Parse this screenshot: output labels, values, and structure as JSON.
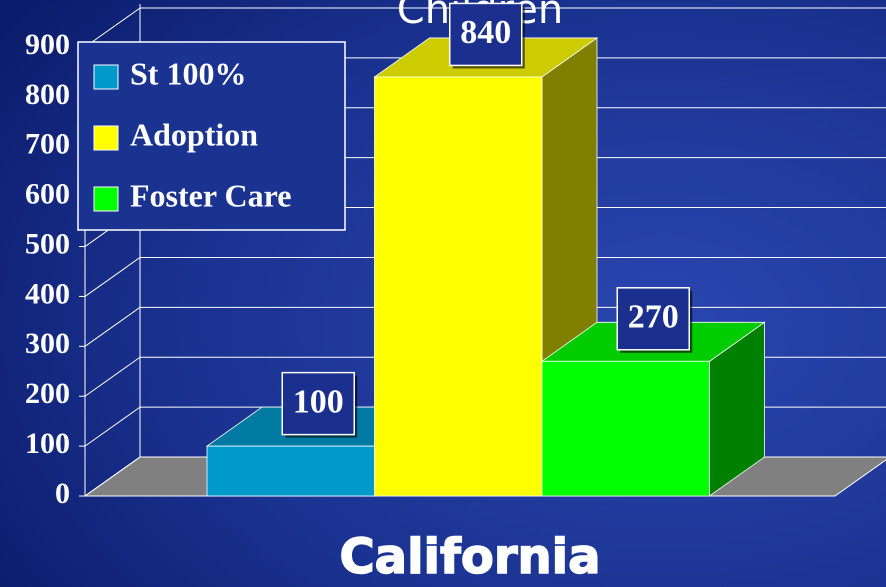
{
  "chart_data": {
    "type": "bar3d",
    "title": "Children",
    "categories": [
      "California"
    ],
    "series": [
      {
        "name": "St 100%",
        "color": "#0099cc",
        "values": [
          100
        ]
      },
      {
        "name": "Adoption",
        "color": "#ffff00",
        "values": [
          840
        ]
      },
      {
        "name": "Foster Care",
        "color": "#00ff00",
        "values": [
          270
        ]
      }
    ],
    "ylim": [
      0,
      900
    ],
    "yticks": [
      0,
      100,
      200,
      300,
      400,
      500,
      600,
      700,
      800,
      900
    ],
    "grid": true,
    "legend": "top-left"
  }
}
